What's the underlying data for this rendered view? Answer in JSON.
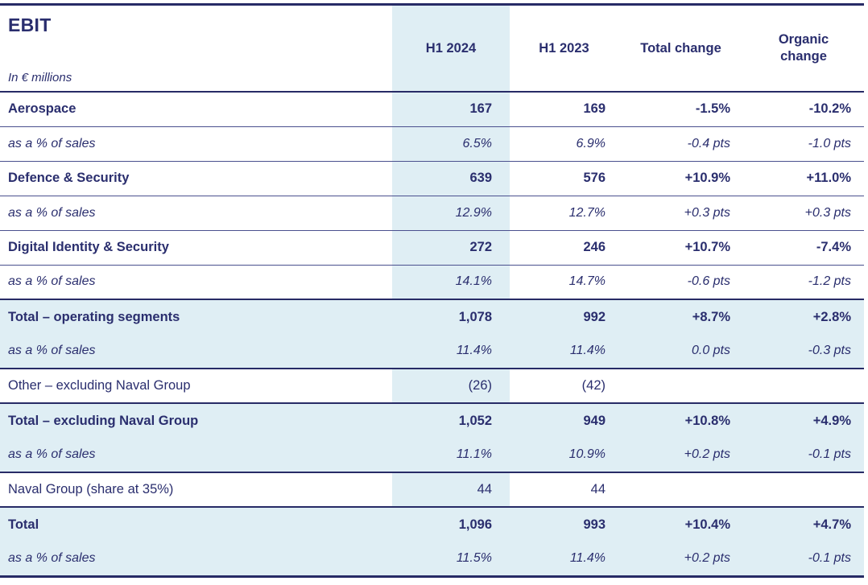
{
  "table": {
    "title": "EBIT",
    "subtitle": "In € millions",
    "columns": [
      "H1 2024",
      "H1 2023",
      "Total change",
      "Organic change"
    ],
    "rows": [
      {
        "label": "Aerospace",
        "style": "bold",
        "band": false,
        "values": [
          "167",
          "169",
          "-1.5%",
          "-10.2%"
        ]
      },
      {
        "label": "as a % of sales",
        "style": "italic",
        "band": false,
        "values": [
          "6.5%",
          "6.9%",
          "-0.4 pts",
          "-1.0 pts"
        ]
      },
      {
        "label": "Defence & Security",
        "style": "bold",
        "band": false,
        "values": [
          "639",
          "576",
          "+10.9%",
          "+11.0%"
        ]
      },
      {
        "label": "as a % of sales",
        "style": "italic",
        "band": false,
        "values": [
          "12.9%",
          "12.7%",
          "+0.3 pts",
          "+0.3 pts"
        ]
      },
      {
        "label": "Digital Identity & Security",
        "style": "bold",
        "band": false,
        "values": [
          "272",
          "246",
          "+10.7%",
          "-7.4%"
        ]
      },
      {
        "label": "as a % of sales",
        "style": "italic",
        "band": false,
        "values": [
          "14.1%",
          "14.7%",
          "-0.6 pts",
          "-1.2 pts"
        ]
      },
      {
        "label": "Total – operating segments",
        "style": "bold",
        "band": true,
        "values": [
          "1,078",
          "992",
          "+8.7%",
          "+2.8%"
        ]
      },
      {
        "label": "as a % of sales",
        "style": "italic",
        "band": true,
        "values": [
          "11.4%",
          "11.4%",
          "0.0 pts",
          "-0.3 pts"
        ]
      },
      {
        "label": "Other – excluding Naval Group",
        "style": "regular",
        "band": false,
        "values": [
          "(26)",
          "(42)",
          "",
          ""
        ]
      },
      {
        "label": "Total – excluding Naval Group",
        "style": "bold",
        "band": true,
        "values": [
          "1,052",
          "949",
          "+10.8%",
          "+4.9%"
        ]
      },
      {
        "label": "as a % of sales",
        "style": "italic",
        "band": true,
        "values": [
          "11.1%",
          "10.9%",
          "+0.2 pts",
          "-0.1 pts"
        ]
      },
      {
        "label": "Naval Group (share at 35%)",
        "style": "regular",
        "band": false,
        "values": [
          "44",
          "44",
          "",
          ""
        ]
      },
      {
        "label": "Total",
        "style": "bold",
        "band": true,
        "values": [
          "1,096",
          "993",
          "+10.4%",
          "+4.7%"
        ]
      },
      {
        "label": "as a % of sales",
        "style": "italic",
        "band": true,
        "values": [
          "11.5%",
          "11.4%",
          "+0.2 pts",
          "-0.1 pts"
        ]
      }
    ],
    "colors": {
      "navy_text": "#2a2e6e",
      "thick_line": "#272b66",
      "thin_line": "#4a508e",
      "highlight_blue": "#dfeef4"
    }
  }
}
